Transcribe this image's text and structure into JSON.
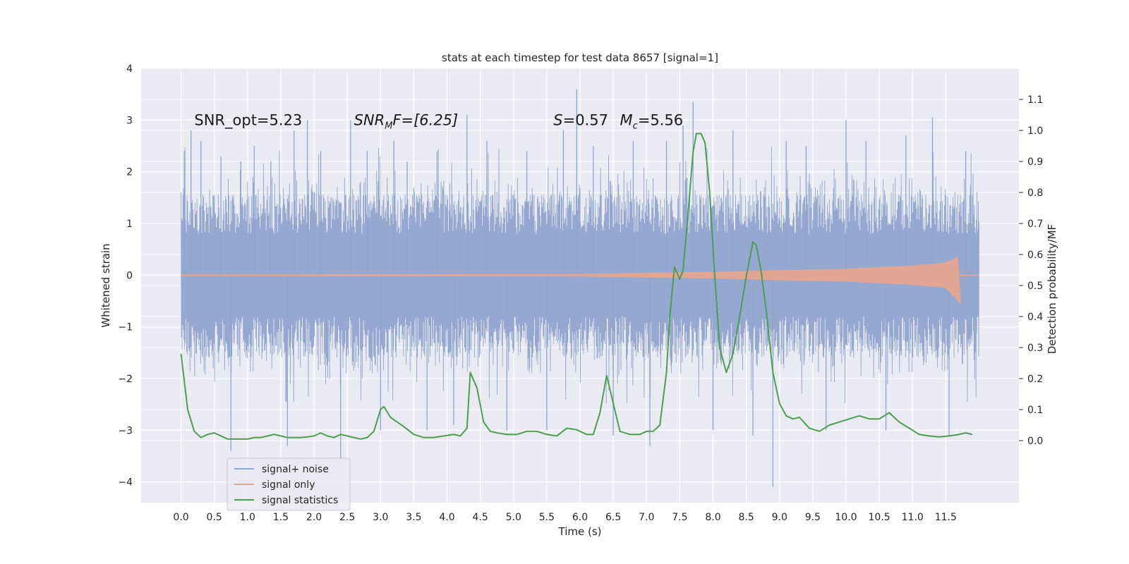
{
  "chart_data": {
    "type": "line",
    "title": "stats at each timestep for test data 8657 [signal=1]",
    "xlabel": "Time (s)",
    "ylabel": "Whitened strain",
    "y2label": "Detection probability/MF",
    "xlim": [
      -0.6,
      12.6
    ],
    "ylim": [
      -4.4,
      4.0
    ],
    "y2lim": [
      -0.2,
      1.2
    ],
    "xticks": [
      0.0,
      0.5,
      1.0,
      1.5,
      2.0,
      2.5,
      3.0,
      3.5,
      4.0,
      4.5,
      5.0,
      5.5,
      6.0,
      6.5,
      7.0,
      7.5,
      8.0,
      8.5,
      9.0,
      9.5,
      10.0,
      10.5,
      11.0,
      11.5
    ],
    "xtick_labels": [
      "0.0",
      "0.5",
      "1.0",
      "1.5",
      "2.0",
      "2.5",
      "3.0",
      "3.5",
      "4.0",
      "4.5",
      "5.0",
      "5.5",
      "6.0",
      "6.5",
      "7.0",
      "7.5",
      "8.0",
      "8.5",
      "9.0",
      "9.5",
      "10.0",
      "10.5",
      "11.0",
      "11.5"
    ],
    "yticks": [
      -4,
      -3,
      -2,
      -1,
      0,
      1,
      2,
      3,
      4
    ],
    "ytick_labels": [
      "−4",
      "−3",
      "−2",
      "−1",
      "0",
      "1",
      "2",
      "3",
      "4"
    ],
    "y2ticks": [
      0.0,
      0.1,
      0.2,
      0.3,
      0.4,
      0.5,
      0.6,
      0.7,
      0.8,
      0.9,
      1.0,
      1.1
    ],
    "y2tick_labels": [
      "0.0",
      "0.1",
      "0.2",
      "0.3",
      "0.4",
      "0.5",
      "0.6",
      "0.7",
      "0.8",
      "0.9",
      "1.0",
      "1.1"
    ],
    "legend_position": "lower-left",
    "annotations": [
      {
        "id": "snr-opt",
        "text": "SNR_opt=5.23",
        "x": 0.2,
        "y": 2.9
      },
      {
        "id": "snr-mf",
        "base": "SNR",
        "sub": "M",
        "rest": "F=[6.25]",
        "x": 2.6,
        "y": 2.9
      },
      {
        "id": "s-value",
        "base": "S",
        "rest": "=0.57",
        "x": 5.6,
        "y": 2.9
      },
      {
        "id": "mc-value",
        "base": "M",
        "sub": "c",
        "rest": "=5.56",
        "x": 6.6,
        "y": 2.9
      }
    ],
    "series": [
      {
        "name": "signal+ noise",
        "color": "#8fa4ce",
        "kind": "noise",
        "x_start": 0.0,
        "x_end": 12.0,
        "band_low": -1.5,
        "band_high": 1.55,
        "spikes": [
          [
            0.05,
            2.4
          ],
          [
            0.15,
            2.8
          ],
          [
            0.3,
            2.6
          ],
          [
            0.6,
            2.3
          ],
          [
            0.75,
            -3.4
          ],
          [
            0.9,
            2.2
          ],
          [
            1.1,
            2.5
          ],
          [
            1.35,
            2.2
          ],
          [
            1.6,
            -3.3
          ],
          [
            1.7,
            2.8
          ],
          [
            1.9,
            3.0
          ],
          [
            2.1,
            2.4
          ],
          [
            2.4,
            -3.55
          ],
          [
            2.55,
            3.0
          ],
          [
            2.8,
            2.4
          ],
          [
            3.0,
            -3.0
          ],
          [
            3.2,
            2.6
          ],
          [
            3.4,
            2.2
          ],
          [
            3.7,
            -3.0
          ],
          [
            3.85,
            2.4
          ],
          [
            4.1,
            -2.9
          ],
          [
            4.3,
            3.1
          ],
          [
            4.6,
            2.6
          ],
          [
            4.9,
            -3.0
          ],
          [
            5.2,
            2.4
          ],
          [
            5.5,
            -3.0
          ],
          [
            5.75,
            2.8
          ],
          [
            5.95,
            3.6
          ],
          [
            6.2,
            2.5
          ],
          [
            6.5,
            -3.1
          ],
          [
            6.8,
            2.6
          ],
          [
            7.05,
            -3.3
          ],
          [
            7.3,
            2.6
          ],
          [
            7.55,
            2.9
          ],
          [
            7.7,
            3.35
          ],
          [
            8.0,
            -3.0
          ],
          [
            8.3,
            2.8
          ],
          [
            8.6,
            -3.1
          ],
          [
            8.9,
            -4.1
          ],
          [
            9.1,
            2.6
          ],
          [
            9.4,
            2.5
          ],
          [
            9.7,
            -3.0
          ],
          [
            10.0,
            3.0
          ],
          [
            10.3,
            2.6
          ],
          [
            10.6,
            -3.0
          ],
          [
            10.9,
            2.7
          ],
          [
            11.3,
            3.05
          ],
          [
            11.55,
            -3.1
          ],
          [
            11.8,
            2.4
          ]
        ]
      },
      {
        "name": "signal only",
        "color": "#e8a48c",
        "kind": "chirp",
        "x_start": 0.0,
        "x_end": 12.0,
        "envelope": [
          [
            0.0,
            0.01
          ],
          [
            6.0,
            0.02
          ],
          [
            8.0,
            0.06
          ],
          [
            10.0,
            0.12
          ],
          [
            11.0,
            0.18
          ],
          [
            11.5,
            0.24
          ],
          [
            11.68,
            0.35
          ],
          [
            11.72,
            -0.55
          ]
        ]
      },
      {
        "name": "signal statistics",
        "color": "#4c9f50",
        "kind": "line",
        "axis": "right",
        "x": [
          0.0,
          0.1,
          0.2,
          0.3,
          0.4,
          0.5,
          0.6,
          0.7,
          0.8,
          0.9,
          1.0,
          1.1,
          1.2,
          1.3,
          1.4,
          1.5,
          1.6,
          1.7,
          1.8,
          1.9,
          2.0,
          2.1,
          2.2,
          2.3,
          2.4,
          2.5,
          2.6,
          2.7,
          2.8,
          2.9,
          3.0,
          3.05,
          3.15,
          3.25,
          3.35,
          3.5,
          3.65,
          3.8,
          3.95,
          4.1,
          4.2,
          4.3,
          4.35,
          4.45,
          4.55,
          4.65,
          4.75,
          4.9,
          5.05,
          5.2,
          5.35,
          5.5,
          5.65,
          5.8,
          5.95,
          6.1,
          6.2,
          6.3,
          6.4,
          6.5,
          6.6,
          6.75,
          6.9,
          7.0,
          7.1,
          7.2,
          7.3,
          7.35,
          7.42,
          7.5,
          7.55,
          7.62,
          7.7,
          7.75,
          7.82,
          7.88,
          7.95,
          8.02,
          8.1,
          8.2,
          8.3,
          8.4,
          8.5,
          8.6,
          8.65,
          8.72,
          8.8,
          8.9,
          9.0,
          9.1,
          9.2,
          9.3,
          9.45,
          9.6,
          9.75,
          9.9,
          10.05,
          10.2,
          10.35,
          10.5,
          10.65,
          10.8,
          10.95,
          11.1,
          11.25,
          11.4,
          11.55,
          11.7,
          11.8,
          11.9
        ],
        "values": [
          0.28,
          0.1,
          0.03,
          0.01,
          0.02,
          0.025,
          0.015,
          0.005,
          0.005,
          0.005,
          0.005,
          0.01,
          0.01,
          0.015,
          0.02,
          0.015,
          0.01,
          0.01,
          0.01,
          0.012,
          0.015,
          0.025,
          0.015,
          0.01,
          0.02,
          0.015,
          0.01,
          0.005,
          0.01,
          0.03,
          0.1,
          0.11,
          0.075,
          0.06,
          0.045,
          0.02,
          0.01,
          0.01,
          0.015,
          0.02,
          0.015,
          0.04,
          0.22,
          0.17,
          0.06,
          0.03,
          0.025,
          0.02,
          0.02,
          0.03,
          0.03,
          0.02,
          0.015,
          0.04,
          0.035,
          0.02,
          0.02,
          0.09,
          0.21,
          0.12,
          0.03,
          0.02,
          0.02,
          0.03,
          0.03,
          0.05,
          0.22,
          0.4,
          0.56,
          0.52,
          0.55,
          0.72,
          0.93,
          0.99,
          0.99,
          0.96,
          0.8,
          0.55,
          0.3,
          0.22,
          0.28,
          0.4,
          0.53,
          0.64,
          0.63,
          0.55,
          0.42,
          0.22,
          0.12,
          0.08,
          0.07,
          0.075,
          0.04,
          0.03,
          0.05,
          0.06,
          0.07,
          0.08,
          0.07,
          0.07,
          0.09,
          0.06,
          0.04,
          0.02,
          0.015,
          0.012,
          0.015,
          0.02,
          0.025,
          0.02
        ]
      }
    ]
  }
}
